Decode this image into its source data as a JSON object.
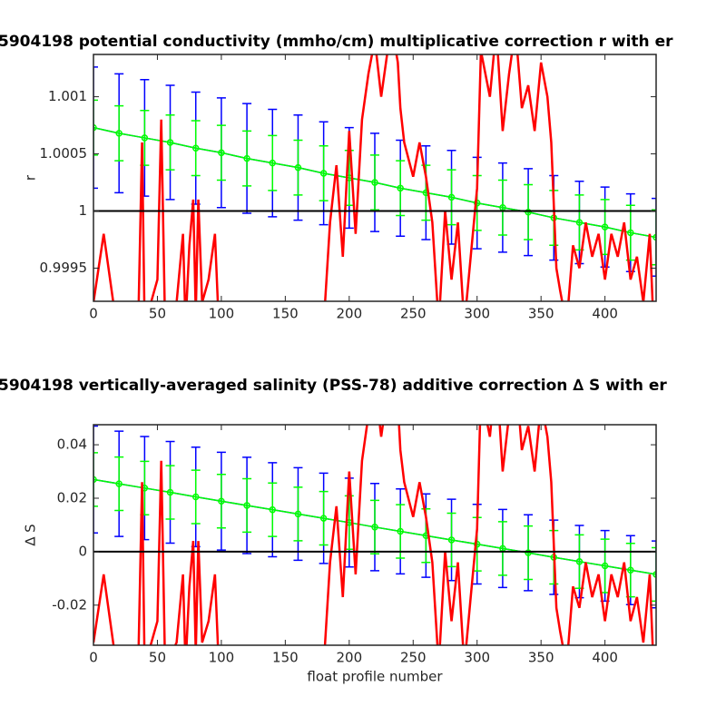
{
  "chart_data": [
    {
      "type": "errorbar",
      "title": "5904198 potential conductivity (mmho/cm) multiplicative correction r with er",
      "ylabel": "r",
      "xlim": [
        0,
        440
      ],
      "xticks": [
        0,
        50,
        100,
        150,
        200,
        250,
        300,
        350,
        400
      ],
      "ylim": [
        0.99921,
        1.00137
      ],
      "yticks": [
        0.9995,
        1,
        1.0005,
        1.001
      ],
      "reference": 1,
      "x": [
        0,
        20,
        40,
        60,
        80,
        100,
        120,
        140,
        160,
        180,
        200,
        220,
        240,
        260,
        280,
        300,
        320,
        340,
        360,
        380,
        400,
        420,
        440
      ],
      "series": [
        {
          "color": "#0000ff",
          "values": [
            1.00073,
            1.00068,
            1.00064,
            1.0006,
            1.00055,
            1.00051,
            1.00046,
            1.00042,
            1.00038,
            1.00033,
            1.00029,
            1.00025,
            1.0002,
            1.00016,
            1.00012,
            1.00007,
            1.00003,
            0.99999,
            0.99994,
            0.9999,
            0.99986,
            0.99981,
            0.99977
          ],
          "errors": [
            0.00053,
            0.00052,
            0.00051,
            0.0005,
            0.00049,
            0.00048,
            0.00048,
            0.00047,
            0.00046,
            0.00045,
            0.00044,
            0.00043,
            0.00042,
            0.00041,
            0.00041,
            0.0004,
            0.00039,
            0.00038,
            0.00037,
            0.00036,
            0.00035,
            0.00034,
            0.00034
          ]
        },
        {
          "color": "#00ff00",
          "values": [
            1.00073,
            1.00068,
            1.00064,
            1.0006,
            1.00055,
            1.00051,
            1.00046,
            1.00042,
            1.00038,
            1.00033,
            1.00029,
            1.00025,
            1.0002,
            1.00016,
            1.00012,
            1.00007,
            1.00003,
            0.99999,
            0.99994,
            0.9999,
            0.99986,
            0.99981,
            0.99977
          ],
          "errors": [
            0.00024,
            0.00024,
            0.00024,
            0.00024,
            0.00024,
            0.00024,
            0.00024,
            0.00024,
            0.00024,
            0.00024,
            0.00024,
            0.00024,
            0.00024,
            0.00024,
            0.00024,
            0.00024,
            0.00024,
            0.00024,
            0.00024,
            0.00024,
            0.00024,
            0.00024,
            0.00024
          ]
        },
        {
          "color": "#ff0000",
          "kind": "line",
          "x": [
            0,
            8,
            18,
            35,
            38,
            40,
            50,
            53,
            56,
            65,
            70,
            72,
            75,
            78,
            80,
            82,
            85,
            90,
            95,
            98,
            180,
            185,
            190,
            195,
            200,
            205,
            210,
            215,
            220,
            225,
            230,
            232,
            238,
            240,
            243,
            250,
            255,
            260,
            265,
            270,
            275,
            280,
            285,
            290,
            295,
            300,
            303,
            310,
            315,
            320,
            325,
            330,
            335,
            340,
            345,
            350,
            355,
            358,
            362,
            365,
            370,
            375,
            380,
            385,
            390,
            395,
            400,
            405,
            410,
            415,
            420,
            425,
            430,
            435,
            438
          ],
          "values": [
            0.9992,
            0.9998,
            0.999,
            0.999,
            1.0006,
            0.999,
            0.9994,
            1.0008,
            0.999,
            0.9992,
            0.9998,
            0.999,
            0.9997,
            1.0001,
            0.9991,
            1.0001,
            0.9992,
            0.9994,
            0.9998,
            0.999,
            0.999,
            0.9999,
            1.0004,
            0.9996,
            1.0007,
            0.9998,
            1.0008,
            1.0012,
            1.0015,
            1.001,
            1.0014,
            1.0017,
            1.0013,
            1.0009,
            1.0006,
            1.0003,
            1.0006,
            1.0003,
            0.9999,
            0.999,
            1,
            0.9994,
            0.9999,
            0.999,
            0.9996,
            1.0002,
            1.0014,
            1.001,
            1.0016,
            1.0007,
            1.0012,
            1.0016,
            1.0009,
            1.0011,
            1.0007,
            1.0013,
            1.001,
            1.0006,
            0.9995,
            0.9993,
            0.999,
            0.9997,
            0.9995,
            0.9999,
            0.9996,
            0.9998,
            0.9994,
            0.9998,
            0.9996,
            0.9999,
            0.9994,
            0.9996,
            0.9992,
            0.9998,
            0.999
          ]
        }
      ]
    },
    {
      "type": "errorbar",
      "title": "5904198 vertically-averaged salinity (PSS-78) additive correction ∆ S with er",
      "ylabel": "∆ S",
      "xlabel": "float profile number",
      "xlim": [
        0,
        440
      ],
      "xticks": [
        0,
        50,
        100,
        150,
        200,
        250,
        300,
        350,
        400
      ],
      "ylim": [
        -0.035,
        0.0475
      ],
      "yticks": [
        -0.02,
        0,
        0.02,
        0.04
      ],
      "reference": 0,
      "x": [
        0,
        20,
        40,
        60,
        80,
        100,
        120,
        140,
        160,
        180,
        200,
        220,
        240,
        260,
        280,
        300,
        320,
        340,
        360,
        380,
        400,
        420,
        440
      ],
      "series": [
        {
          "color": "#0000ff",
          "values": [
            0.027,
            0.0254,
            0.0238,
            0.0222,
            0.0205,
            0.0189,
            0.0173,
            0.0157,
            0.0141,
            0.0125,
            0.0109,
            0.0092,
            0.0076,
            0.006,
            0.0044,
            0.0028,
            0.0012,
            -0.0004,
            -0.0021,
            -0.0037,
            -0.0053,
            -0.0069,
            -0.0085
          ],
          "errors": [
            0.02,
            0.0197,
            0.0193,
            0.019,
            0.0186,
            0.0183,
            0.018,
            0.0176,
            0.0173,
            0.0169,
            0.0166,
            0.0163,
            0.0159,
            0.0156,
            0.0152,
            0.0149,
            0.0146,
            0.0142,
            0.0139,
            0.0135,
            0.0132,
            0.0129,
            0.0125
          ]
        },
        {
          "color": "#00ff00",
          "values": [
            0.027,
            0.0254,
            0.0238,
            0.0222,
            0.0205,
            0.0189,
            0.0173,
            0.0157,
            0.0141,
            0.0125,
            0.0109,
            0.0092,
            0.0076,
            0.006,
            0.0044,
            0.0028,
            0.0012,
            -0.0004,
            -0.0021,
            -0.0037,
            -0.0053,
            -0.0069,
            -0.0085
          ],
          "errors": [
            0.01,
            0.01,
            0.01,
            0.01,
            0.01,
            0.01,
            0.01,
            0.01,
            0.01,
            0.01,
            0.01,
            0.01,
            0.01,
            0.01,
            0.01,
            0.01,
            0.01,
            0.01,
            0.01,
            0.01,
            0.01,
            0.01,
            0.01
          ]
        },
        {
          "color": "#ff0000",
          "kind": "line",
          "x": [
            0,
            8,
            18,
            35,
            38,
            40,
            50,
            53,
            56,
            65,
            70,
            72,
            75,
            78,
            80,
            82,
            85,
            90,
            95,
            98,
            180,
            185,
            190,
            195,
            200,
            205,
            210,
            215,
            220,
            225,
            230,
            232,
            238,
            240,
            243,
            250,
            255,
            260,
            265,
            270,
            275,
            280,
            285,
            290,
            295,
            300,
            303,
            310,
            315,
            320,
            325,
            330,
            335,
            340,
            345,
            350,
            355,
            358,
            362,
            365,
            370,
            375,
            380,
            385,
            390,
            395,
            400,
            405,
            410,
            415,
            420,
            425,
            430,
            435,
            438
          ],
          "values": [
            -0.034,
            -0.0085,
            -0.043,
            -0.043,
            0.026,
            -0.043,
            -0.026,
            0.034,
            -0.043,
            -0.034,
            -0.0085,
            -0.043,
            -0.013,
            0.004,
            -0.038,
            0.004,
            -0.034,
            -0.026,
            -0.0085,
            -0.043,
            -0.043,
            -0.004,
            0.017,
            -0.017,
            0.03,
            -0.0085,
            0.034,
            0.051,
            0.064,
            0.043,
            0.06,
            0.073,
            0.056,
            0.038,
            0.026,
            0.013,
            0.026,
            0.013,
            -0.004,
            -0.043,
            0,
            -0.026,
            -0.004,
            -0.043,
            -0.017,
            0.0085,
            0.06,
            0.043,
            0.068,
            0.03,
            0.051,
            0.068,
            0.038,
            0.047,
            0.03,
            0.056,
            0.043,
            0.026,
            -0.021,
            -0.03,
            -0.043,
            -0.013,
            -0.021,
            -0.004,
            -0.017,
            -0.0085,
            -0.026,
            -0.0085,
            -0.017,
            -0.004,
            -0.026,
            -0.017,
            -0.034,
            -0.0085,
            -0.043
          ]
        }
      ]
    }
  ]
}
